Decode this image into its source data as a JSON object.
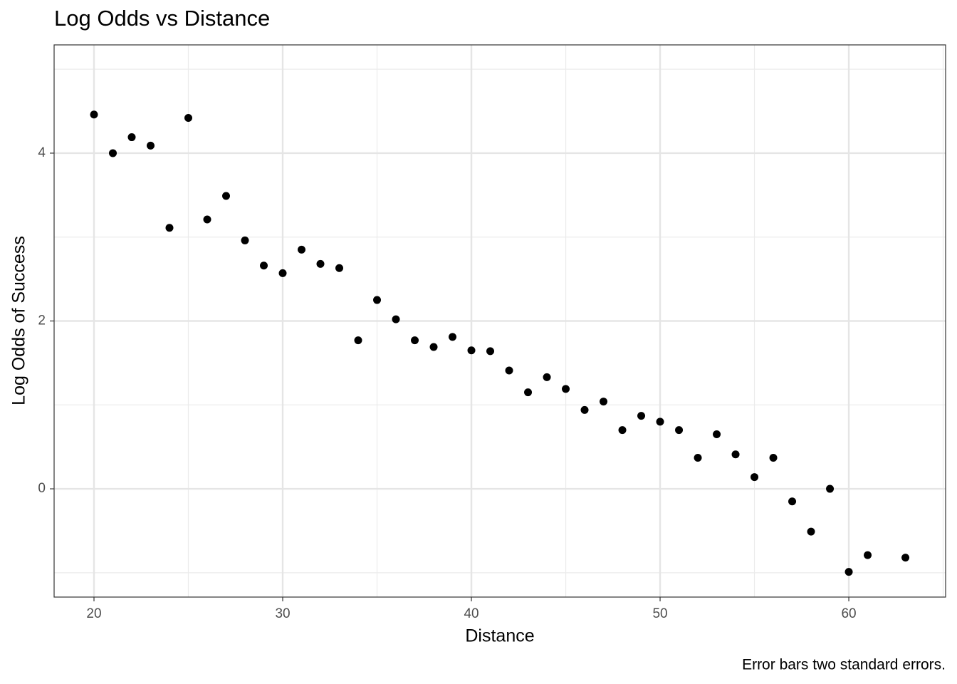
{
  "chart_data": {
    "type": "scatter",
    "title": "Log Odds vs Distance",
    "x_label": "Distance",
    "y_label": "Log Odds of Success",
    "caption": "Error bars two standard errors.",
    "x": [
      20,
      21,
      22,
      23,
      24,
      25,
      26,
      27,
      28,
      29,
      30,
      31,
      32,
      33,
      34,
      35,
      36,
      37,
      38,
      39,
      40,
      41,
      42,
      43,
      44,
      45,
      46,
      47,
      48,
      49,
      50,
      51,
      52,
      53,
      54,
      55,
      56,
      57,
      58,
      59,
      60,
      61,
      63
    ],
    "series": [
      {
        "color": "#000000",
        "values": [
          4.46,
          4.0,
          4.19,
          4.09,
          3.11,
          4.42,
          3.21,
          3.49,
          2.96,
          2.66,
          2.57,
          2.85,
          2.68,
          2.63,
          1.77,
          2.25,
          2.02,
          1.77,
          1.69,
          1.81,
          1.65,
          1.64,
          1.41,
          1.15,
          1.33,
          1.19,
          0.94,
          1.04,
          0.7,
          0.87,
          0.8,
          0.7,
          0.37,
          0.65,
          0.41,
          0.14,
          0.37,
          -0.15,
          -0.51,
          0.0,
          -0.99,
          -0.79,
          -0.82
        ]
      }
    ],
    "xlim": [
      17.887,
      65.13
    ],
    "ylim": [
      -1.29,
      5.29
    ],
    "xticks": [
      20,
      30,
      40,
      50,
      60
    ],
    "yticks": [
      0,
      2,
      4
    ],
    "x_minor_ticks": [
      25,
      35,
      45,
      55,
      65
    ],
    "y_minor_ticks": [
      -1,
      1,
      3,
      5
    ],
    "grid": true
  }
}
